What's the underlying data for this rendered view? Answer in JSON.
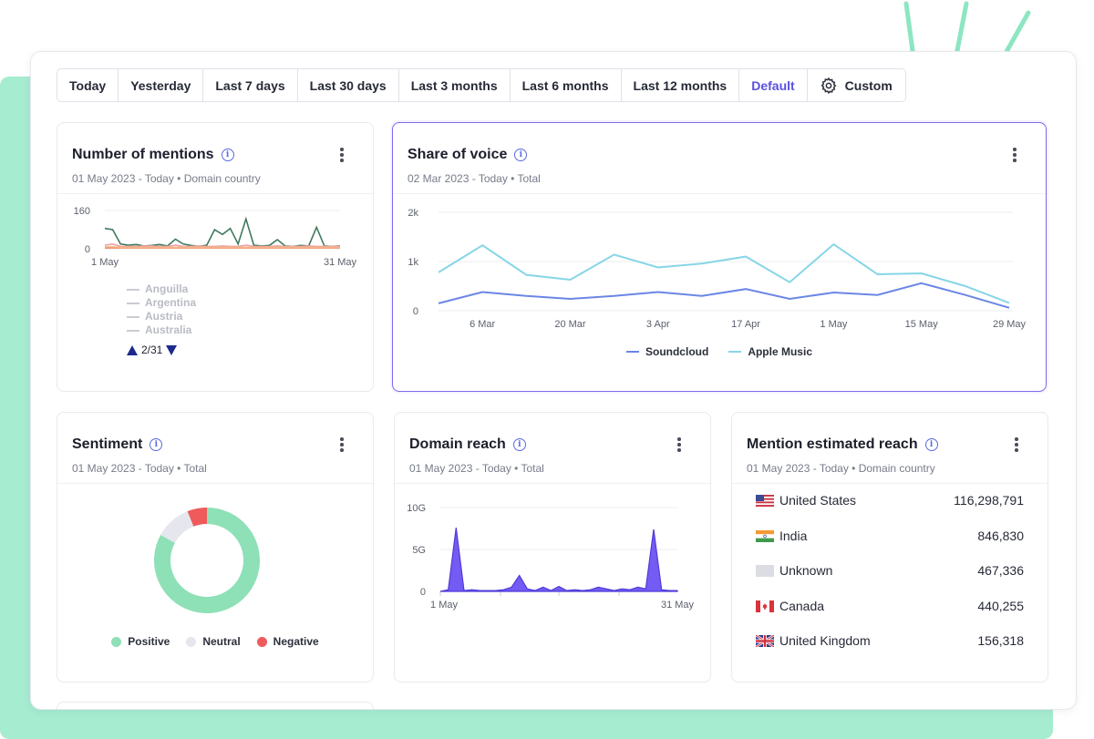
{
  "range_bar": {
    "options": [
      "Today",
      "Yesterday",
      "Last 7 days",
      "Last 30 days",
      "Last 3 months",
      "Last 6 months",
      "Last 12 months",
      "Default"
    ],
    "custom_label": "Custom",
    "active": "Default",
    "custom_icon": "gear-icon"
  },
  "cards": {
    "mentions": {
      "title": "Number of mentions",
      "subtitle": "01 May 2023 - Today • Domain country",
      "legend": [
        "Anguilla",
        "Argentina",
        "Austria",
        "Australia"
      ],
      "pager": "2/31",
      "pager_up_icon": "triangle-up-icon",
      "pager_down_icon": "triangle-down-icon"
    },
    "share_of_voice": {
      "title": "Share of voice",
      "subtitle": "02 Mar 2023 - Today • Total"
    },
    "sentiment": {
      "title": "Sentiment",
      "subtitle": "01 May 2023 - Today • Total"
    },
    "domain_reach": {
      "title": "Domain reach",
      "subtitle": "01 May 2023 - Today • Total"
    },
    "mention_reach": {
      "title": "Mention estimated reach",
      "subtitle": "01 May 2023 - Today • Domain country",
      "rows": [
        {
          "country": "United States",
          "value": "116,298,791",
          "flag": "us-flag-icon"
        },
        {
          "country": "India",
          "value": "846,830",
          "flag": "in-flag-icon"
        },
        {
          "country": "Unknown",
          "value": "467,336",
          "flag": "unknown-flag-icon"
        },
        {
          "country": "Canada",
          "value": "440,255",
          "flag": "ca-flag-icon"
        },
        {
          "country": "United Kingdom",
          "value": "156,318",
          "flag": "gb-flag-icon"
        }
      ]
    }
  },
  "colors": {
    "accent": "#5b4fe0",
    "soundcloud": "#6b86e6",
    "apple_music": "#86d6e6",
    "positive": "#8ee0b6",
    "neutral": "#e6e7ee",
    "negative": "#ef5b5b",
    "reach_fill": "#6b52f2",
    "mint": "#a6ecd1"
  },
  "chart_data": [
    {
      "type": "line",
      "title": "Number of mentions",
      "x_labels": [
        "1 May",
        "31 May"
      ],
      "yticks": [
        0,
        160
      ],
      "ylim": [
        0,
        160
      ],
      "series": [
        {
          "values": [
            85,
            80,
            20,
            15,
            18,
            12,
            14,
            18,
            12,
            40,
            20,
            14,
            10,
            15,
            80,
            60,
            85,
            20,
            125,
            15,
            12,
            14,
            38,
            12,
            10,
            14,
            12,
            90,
            12,
            10,
            12
          ],
          "color": "#3f7a5c"
        },
        {
          "values": [
            15,
            20,
            10,
            10,
            10,
            12,
            12,
            10,
            10,
            15,
            10,
            10,
            12,
            10,
            10,
            12,
            10,
            10,
            15,
            10,
            10,
            10,
            12,
            10,
            10,
            10,
            12,
            10,
            10,
            10,
            10
          ],
          "color": "#f0a1a0"
        },
        {
          "values": [
            4,
            4,
            4,
            4,
            4,
            4,
            4,
            4,
            4,
            4,
            4,
            4,
            4,
            4,
            4,
            4,
            4,
            4,
            4,
            4,
            4,
            4,
            4,
            4,
            4,
            4,
            4,
            4,
            4,
            4,
            4
          ],
          "color": "#f07a3a"
        },
        {
          "values": [
            8,
            8,
            6,
            6,
            6,
            6,
            6,
            6,
            6,
            6,
            6,
            6,
            6,
            6,
            6,
            6,
            6,
            6,
            6,
            6,
            6,
            6,
            6,
            6,
            6,
            6,
            6,
            6,
            6,
            6,
            6
          ],
          "color": "#f5b48a"
        }
      ]
    },
    {
      "type": "line",
      "title": "Share of voice",
      "x_labels": [
        "6 Mar",
        "20 Mar",
        "3 Apr",
        "17 Apr",
        "1 May",
        "15 May",
        "29 May"
      ],
      "yticks": [
        "0",
        "1k",
        "2k"
      ],
      "ylim": [
        0,
        2000
      ],
      "series": [
        {
          "name": "Soundcloud",
          "values": [
            150,
            380,
            300,
            240,
            300,
            380,
            300,
            440,
            240,
            370,
            320,
            560,
            320,
            60
          ]
        },
        {
          "name": "Apple Music",
          "values": [
            780,
            1330,
            730,
            630,
            1140,
            880,
            960,
            1100,
            580,
            1350,
            740,
            760,
            500,
            160
          ]
        }
      ]
    },
    {
      "type": "pie",
      "title": "Sentiment",
      "categories": [
        "Positive",
        "Neutral",
        "Negative"
      ],
      "values": [
        83,
        11,
        6
      ]
    },
    {
      "type": "area",
      "title": "Domain reach",
      "x_labels": [
        "1 May",
        "31 May"
      ],
      "yticks": [
        "0",
        "5G",
        "10G"
      ],
      "ylim": [
        0,
        10
      ],
      "values": [
        0,
        0.2,
        7.6,
        0.1,
        0.2,
        0.1,
        0.1,
        0.1,
        0.2,
        0.5,
        1.9,
        0.3,
        0.1,
        0.5,
        0.1,
        0.6,
        0.1,
        0.2,
        0.1,
        0.2,
        0.5,
        0.3,
        0.1,
        0.3,
        0.2,
        0.5,
        0.3,
        7.4,
        0.2,
        0.1,
        0.1
      ]
    }
  ]
}
